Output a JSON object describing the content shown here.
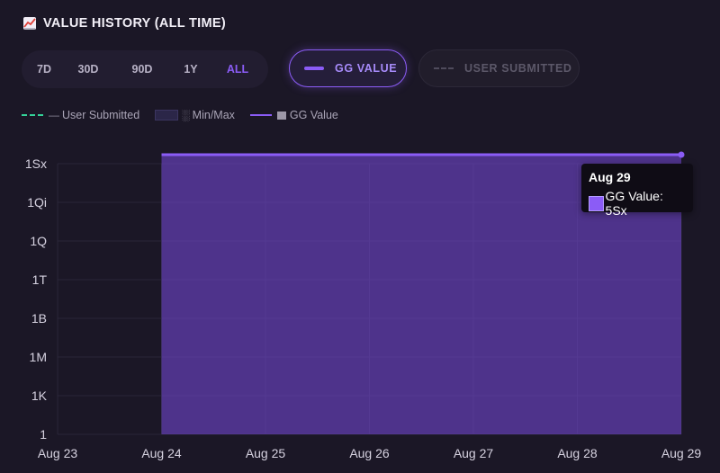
{
  "header": {
    "title": "VALUE HISTORY (ALL TIME)",
    "icon": "chart-increasing-icon"
  },
  "ranges": {
    "items": [
      "7D",
      "30D",
      "90D",
      "1Y",
      "ALL"
    ],
    "selected": "ALL"
  },
  "toggles": {
    "gg_value": {
      "label": "GG VALUE",
      "active": true,
      "color": "#8b5cf6"
    },
    "user_submitted": {
      "label": "USER SUBMITTED",
      "active": false,
      "color": "#4f4b5c"
    }
  },
  "legend": {
    "user_submitted": "User Submitted",
    "user_submitted_glyph": "—",
    "minmax": "Min/Max",
    "minmax_glyph": "░",
    "gg_value": "GG Value",
    "colors": {
      "user_submitted": "#34d399",
      "minmax": "#2b2648",
      "gg_value": "#8b5cf6"
    }
  },
  "tooltip": {
    "date": "Aug 29",
    "label": "GG Value: 5Sx"
  },
  "chart_data": {
    "type": "area",
    "title": "",
    "xlabel": "",
    "ylabel": "",
    "y_scale": "log",
    "y_ticks": [
      "1",
      "1K",
      "1M",
      "1B",
      "1T",
      "1Q",
      "1Qi",
      "1Sx"
    ],
    "x_ticks": [
      "Aug 23",
      "Aug 24",
      "Aug 25",
      "Aug 26",
      "Aug 27",
      "Aug 28",
      "Aug 29"
    ],
    "series": [
      {
        "name": "GG Value",
        "color": "#8b5cf6",
        "x": [
          "Aug 24",
          "Aug 29"
        ],
        "values": [
          "5Sx",
          "5Sx"
        ]
      }
    ],
    "grid": true,
    "legend_placement": "top-left"
  }
}
